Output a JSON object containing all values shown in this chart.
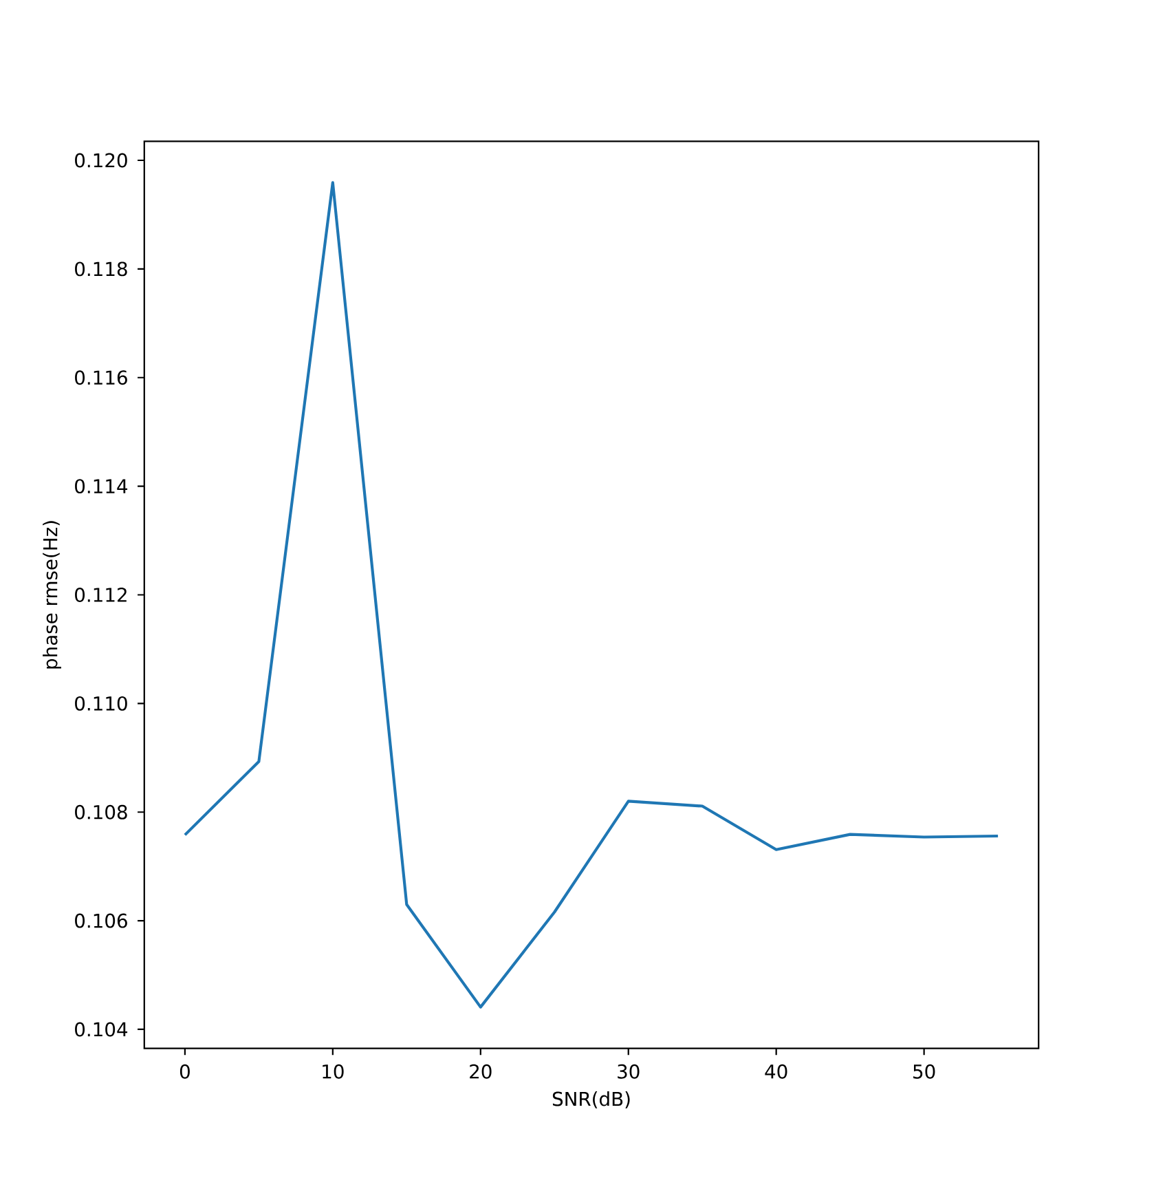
{
  "chart_data": {
    "type": "line",
    "xlabel": "SNR(dB)",
    "ylabel": "phase rmse(Hz)",
    "x": [
      0,
      5,
      10,
      15,
      20,
      25,
      30,
      35,
      40,
      45,
      50,
      55
    ],
    "series": [
      {
        "color": "#1f77b4",
        "values": [
          0.10758,
          0.10893,
          0.11959,
          0.1063,
          0.10441,
          0.10616,
          0.1082,
          0.10811,
          0.10731,
          0.10759,
          0.10754,
          0.10756
        ]
      }
    ],
    "xlim": [
      -2.75,
      57.75
    ],
    "ylim": [
      0.10365,
      0.12035
    ],
    "xticks": [
      0,
      10,
      20,
      30,
      40,
      50
    ],
    "yticks": [
      0.104,
      0.106,
      0.108,
      {
        "value": 0.11,
        "label": "0.110"
      },
      0.112,
      0.114,
      0.116,
      0.118,
      {
        "value": 0.12,
        "label": "0.120"
      }
    ],
    "line_style": "solid"
  }
}
